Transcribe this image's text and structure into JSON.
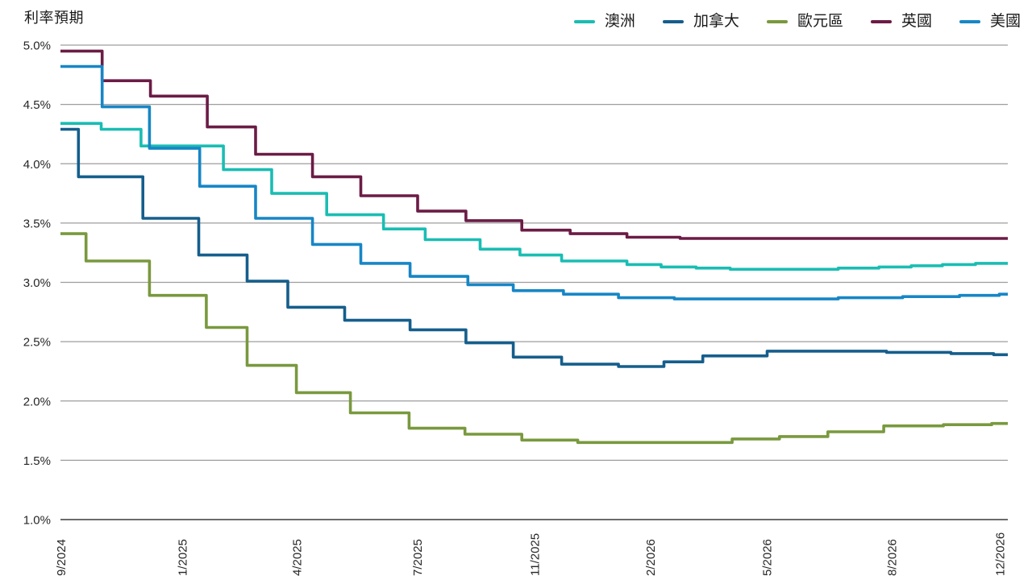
{
  "chart_data": {
    "type": "line",
    "style": "step-after",
    "title": "利率預期",
    "unit": "%",
    "grid": true,
    "legend_position": "top-right",
    "colors": {
      "gridline": "#9d9d9d",
      "axis_line": "#6b6b6b",
      "tick_text": "#262626",
      "background": "#ffffff"
    },
    "y_axis": {
      "min": 1.0,
      "max": 5.0,
      "tick_step": 0.5,
      "tick_labels": [
        "5.0%",
        "4.5%",
        "4.0%",
        "3.5%",
        "3.0%",
        "2.5%",
        "2.0%",
        "1.5%",
        "1.0%"
      ]
    },
    "x_axis": {
      "ticks": [
        {
          "label": "9/2024",
          "pos": 0.0
        },
        {
          "label": "1/2025",
          "pos": 0.128
        },
        {
          "label": "4/2025",
          "pos": 0.249
        },
        {
          "label": "7/2025",
          "pos": 0.376
        },
        {
          "label": "11/2025",
          "pos": 0.5
        },
        {
          "label": "2/2026",
          "pos": 0.622
        },
        {
          "label": "5/2026",
          "pos": 0.745
        },
        {
          "label": "8/2026",
          "pos": 0.877
        },
        {
          "label": "12/2026",
          "pos": 0.991
        }
      ]
    },
    "series": [
      {
        "name": "澳洲",
        "key": "australia",
        "color": "#1abdb3",
        "points": [
          [
            0,
            4.34
          ],
          [
            0.043,
            4.29
          ],
          [
            0.085,
            4.15
          ],
          [
            0.172,
            3.95
          ],
          [
            0.223,
            3.75
          ],
          [
            0.281,
            3.57
          ],
          [
            0.341,
            3.45
          ],
          [
            0.385,
            3.36
          ],
          [
            0.443,
            3.28
          ],
          [
            0.485,
            3.23
          ],
          [
            0.529,
            3.18
          ],
          [
            0.598,
            3.15
          ],
          [
            0.634,
            3.13
          ],
          [
            0.671,
            3.12
          ],
          [
            0.707,
            3.11
          ],
          [
            0.821,
            3.12
          ],
          [
            0.864,
            3.13
          ],
          [
            0.898,
            3.14
          ],
          [
            0.931,
            3.15
          ],
          [
            0.966,
            3.16
          ]
        ]
      },
      {
        "name": "加拿大",
        "key": "canada",
        "color": "#155e8c",
        "points": [
          [
            0,
            4.29
          ],
          [
            0.019,
            3.89
          ],
          [
            0.087,
            3.54
          ],
          [
            0.146,
            3.23
          ],
          [
            0.197,
            3.01
          ],
          [
            0.24,
            2.79
          ],
          [
            0.3,
            2.68
          ],
          [
            0.369,
            2.6
          ],
          [
            0.428,
            2.49
          ],
          [
            0.478,
            2.37
          ],
          [
            0.529,
            2.31
          ],
          [
            0.589,
            2.29
          ],
          [
            0.637,
            2.33
          ],
          [
            0.678,
            2.38
          ],
          [
            0.746,
            2.42
          ],
          [
            0.872,
            2.41
          ],
          [
            0.94,
            2.4
          ],
          [
            0.985,
            2.39
          ]
        ]
      },
      {
        "name": "歐元區",
        "key": "eurozone",
        "color": "#79993e",
        "points": [
          [
            0,
            3.41
          ],
          [
            0.027,
            3.18
          ],
          [
            0.094,
            2.89
          ],
          [
            0.154,
            2.62
          ],
          [
            0.197,
            2.3
          ],
          [
            0.249,
            2.07
          ],
          [
            0.306,
            1.9
          ],
          [
            0.368,
            1.77
          ],
          [
            0.427,
            1.72
          ],
          [
            0.487,
            1.67
          ],
          [
            0.546,
            1.65
          ],
          [
            0.709,
            1.68
          ],
          [
            0.759,
            1.7
          ],
          [
            0.81,
            1.74
          ],
          [
            0.869,
            1.79
          ],
          [
            0.932,
            1.8
          ],
          [
            0.983,
            1.81
          ]
        ]
      },
      {
        "name": "英國",
        "key": "uk",
        "color": "#6b1c45",
        "points": [
          [
            0,
            4.95
          ],
          [
            0.044,
            4.7
          ],
          [
            0.095,
            4.57
          ],
          [
            0.155,
            4.31
          ],
          [
            0.206,
            4.08
          ],
          [
            0.266,
            3.89
          ],
          [
            0.317,
            3.73
          ],
          [
            0.377,
            3.6
          ],
          [
            0.428,
            3.52
          ],
          [
            0.487,
            3.44
          ],
          [
            0.538,
            3.41
          ],
          [
            0.598,
            3.38
          ],
          [
            0.654,
            3.37
          ]
        ]
      },
      {
        "name": "美國",
        "key": "us",
        "color": "#1786c6",
        "points": [
          [
            0,
            4.82
          ],
          [
            0.044,
            4.48
          ],
          [
            0.094,
            4.13
          ],
          [
            0.147,
            3.81
          ],
          [
            0.206,
            3.54
          ],
          [
            0.266,
            3.32
          ],
          [
            0.317,
            3.16
          ],
          [
            0.369,
            3.05
          ],
          [
            0.43,
            2.98
          ],
          [
            0.478,
            2.93
          ],
          [
            0.531,
            2.9
          ],
          [
            0.589,
            2.87
          ],
          [
            0.648,
            2.86
          ],
          [
            0.821,
            2.87
          ],
          [
            0.889,
            2.88
          ],
          [
            0.949,
            2.89
          ],
          [
            0.991,
            2.9
          ]
        ]
      }
    ],
    "legend_order": [
      "澳洲",
      "加拿大",
      "歐元區",
      "英國",
      "美國"
    ]
  }
}
